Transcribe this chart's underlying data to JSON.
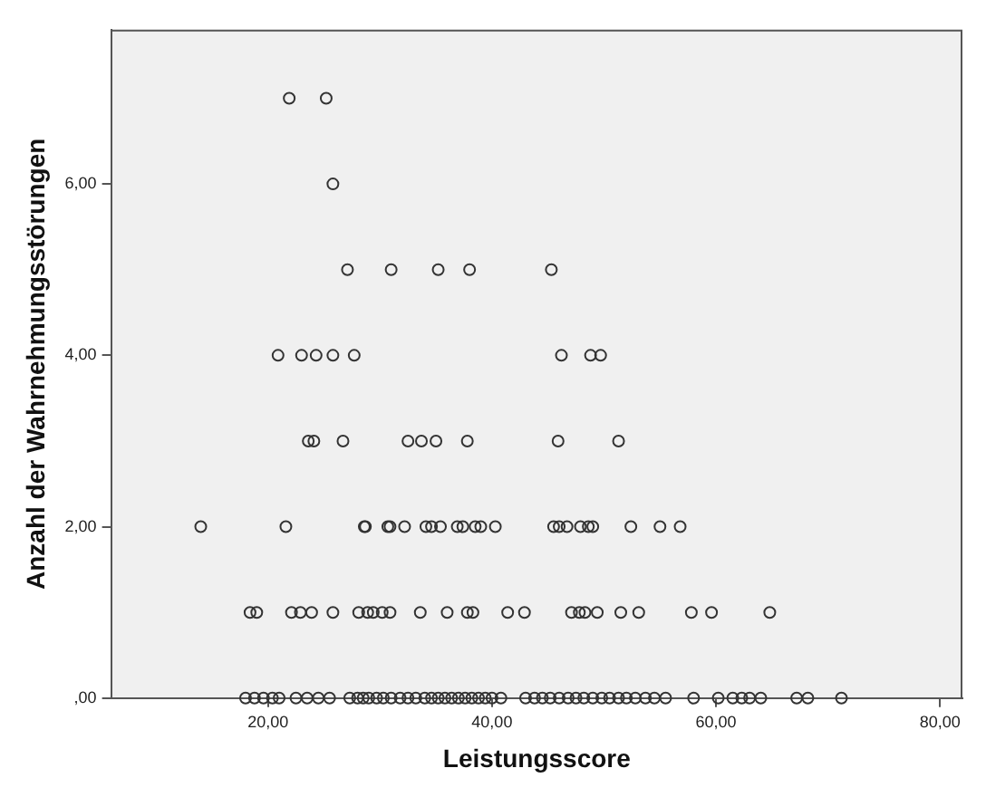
{
  "chart_data": {
    "type": "scatter",
    "xlabel": "Leistungsscore",
    "ylabel": "Anzahl der Wahrnehmungsstörungen",
    "x": [
      21.9,
      25.2,
      25.8,
      27.1,
      31.0,
      35.2,
      38.0,
      45.3,
      20.9,
      23.0,
      24.3,
      25.8,
      27.7,
      46.2,
      48.8,
      49.7,
      23.6,
      24.1,
      26.7,
      32.5,
      33.7,
      35.0,
      37.8,
      45.9,
      51.3,
      14.0,
      21.6,
      28.6,
      28.7,
      30.7,
      30.9,
      32.2,
      34.1,
      34.6,
      35.4,
      36.9,
      37.4,
      38.5,
      39.0,
      40.3,
      45.5,
      46.0,
      46.7,
      47.9,
      48.6,
      49.0,
      52.4,
      55.0,
      56.8,
      18.4,
      19.0,
      22.1,
      22.9,
      23.9,
      25.8,
      28.1,
      28.9,
      29.4,
      30.2,
      30.9,
      33.6,
      36.0,
      37.8,
      38.3,
      41.4,
      42.9,
      47.1,
      47.8,
      48.3,
      49.4,
      51.5,
      53.1,
      57.8,
      59.6,
      64.8,
      18.0,
      18.8,
      19.6,
      20.4,
      21.0,
      22.5,
      23.5,
      24.5,
      25.5,
      27.3,
      28.0,
      28.5,
      29.0,
      29.7,
      30.3,
      31.0,
      31.8,
      32.5,
      33.2,
      34.0,
      34.6,
      35.2,
      35.8,
      36.4,
      37.0,
      37.6,
      38.2,
      38.8,
      39.4,
      40.0,
      40.8,
      43.0,
      43.8,
      44.5,
      45.2,
      46.0,
      46.8,
      47.5,
      48.2,
      49.0,
      49.8,
      50.5,
      51.3,
      52.0,
      52.8,
      53.7,
      54.5,
      55.5,
      58.0,
      60.2,
      61.5,
      62.3,
      63.0,
      64.0,
      67.2,
      68.2,
      71.2
    ],
    "values": [
      7,
      7,
      6,
      5,
      5,
      5,
      5,
      5,
      4,
      4,
      4,
      4,
      4,
      4,
      4,
      4,
      3,
      3,
      3,
      3,
      3,
      3,
      3,
      3,
      3,
      2,
      2,
      2,
      2,
      2,
      2,
      2,
      2,
      2,
      2,
      2,
      2,
      2,
      2,
      2,
      2,
      2,
      2,
      2,
      2,
      2,
      2,
      2,
      2,
      1,
      1,
      1,
      1,
      1,
      1,
      1,
      1,
      1,
      1,
      1,
      1,
      1,
      1,
      1,
      1,
      1,
      1,
      1,
      1,
      1,
      1,
      1,
      1,
      1,
      1,
      0,
      0,
      0,
      0,
      0,
      0,
      0,
      0,
      0,
      0,
      0,
      0,
      0,
      0,
      0,
      0,
      0,
      0,
      0,
      0,
      0,
      0,
      0,
      0,
      0,
      0,
      0,
      0,
      0,
      0,
      0,
      0,
      0,
      0,
      0,
      0,
      0,
      0,
      0,
      0,
      0,
      0,
      0,
      0,
      0,
      0,
      0,
      0,
      0,
      0,
      0,
      0,
      0,
      0,
      0,
      0,
      0
    ],
    "color": "#333333",
    "marker": "circle",
    "grid": false,
    "legend": false,
    "xlim": [
      6,
      82
    ],
    "ylim": [
      0,
      7.8
    ],
    "xticks": [
      {
        "value": 20,
        "label": "20,00"
      },
      {
        "value": 40,
        "label": "40,00"
      },
      {
        "value": 60,
        "label": "60,00"
      },
      {
        "value": 80,
        "label": "80,00"
      }
    ],
    "yticks": [
      {
        "value": 0,
        "label": ",00"
      },
      {
        "value": 2,
        "label": "2,00"
      },
      {
        "value": 4,
        "label": "4,00"
      },
      {
        "value": 6,
        "label": "6,00"
      }
    ]
  }
}
